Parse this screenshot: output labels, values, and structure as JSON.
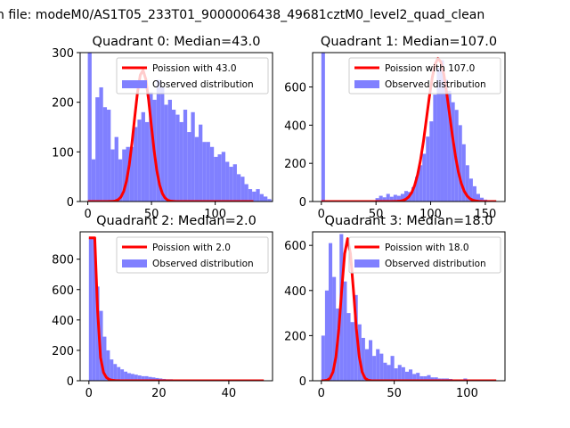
{
  "figure_title": "n file: modeM0/AS1T05_233T01_9000006438_49681cztM0_level2_quad_clean",
  "colors": {
    "hist": "#8080ff",
    "poisson": "#ff0000",
    "axis": "#000000"
  },
  "chart_data": [
    {
      "type": "bar",
      "title": "Quadrant 0: Median=43.0",
      "xlim": [
        -6,
        145
      ],
      "ylim": [
        0,
        300
      ],
      "xticks": [
        0,
        50,
        100
      ],
      "yticks": [
        0,
        100,
        200,
        300
      ],
      "legend_position": "upper right",
      "legend": [
        "Poission with 43.0",
        "Observed distribution"
      ],
      "bin_width": 3,
      "bins_start": 0,
      "observed": [
        300,
        85,
        210,
        230,
        190,
        185,
        105,
        130,
        85,
        105,
        110,
        110,
        150,
        165,
        180,
        160,
        220,
        205,
        245,
        230,
        195,
        205,
        185,
        175,
        160,
        185,
        140,
        180,
        130,
        155,
        120,
        120,
        110,
        90,
        95,
        100,
        80,
        70,
        75,
        55,
        50,
        35,
        25,
        20,
        25,
        15,
        10,
        5,
        2
      ],
      "poisson_lambda": 43.0,
      "poisson_peak": 265,
      "poisson_xrange": [
        0,
        130
      ]
    },
    {
      "type": "bar",
      "title": "Quadrant 1: Median=107.0",
      "xlim": [
        -8,
        168
      ],
      "ylim": [
        0,
        780
      ],
      "xticks": [
        0,
        50,
        100,
        150
      ],
      "yticks": [
        0,
        200,
        400,
        600
      ],
      "legend_position": "upper right",
      "legend": [
        "Poission with 107.0",
        "Observed distribution"
      ],
      "bin_width": 3.3,
      "bins_start": 0,
      "observed": [
        780,
        0,
        0,
        0,
        0,
        0,
        0,
        0,
        0,
        0,
        0,
        0,
        0,
        0,
        0,
        18,
        30,
        22,
        40,
        25,
        35,
        30,
        40,
        55,
        50,
        75,
        130,
        190,
        250,
        340,
        420,
        560,
        700,
        740,
        640,
        580,
        520,
        480,
        400,
        300,
        190,
        120,
        80,
        40,
        20,
        10,
        5,
        3
      ],
      "poisson_lambda": 107.0,
      "poisson_peak": 750,
      "poisson_xrange": [
        0,
        160
      ]
    },
    {
      "type": "bar",
      "title": "Quadrant 2: Median=2.0",
      "xlim": [
        -2.5,
        52.5
      ],
      "ylim": [
        0,
        980
      ],
      "xticks": [
        0,
        20,
        40
      ],
      "yticks": [
        0,
        200,
        400,
        600,
        800
      ],
      "legend_position": "upper right",
      "legend": [
        "Poission with 2.0",
        "Observed distribution"
      ],
      "bin_width": 1.0,
      "bins_start": 0,
      "observed": [
        940,
        940,
        620,
        460,
        290,
        200,
        140,
        110,
        90,
        75,
        60,
        50,
        45,
        40,
        35,
        30,
        30,
        25,
        22,
        18,
        15,
        12,
        10,
        10,
        8,
        6,
        5,
        5,
        4,
        3,
        3,
        2,
        2,
        2,
        1,
        1,
        1,
        1,
        1,
        1,
        0,
        0,
        0,
        0,
        0,
        0,
        0,
        0,
        0,
        0
      ],
      "poisson_lambda": 2.0,
      "poisson_peak": 940,
      "poisson_xrange": [
        0,
        50
      ]
    },
    {
      "type": "bar",
      "title": "Quadrant 3: Median=18.0",
      "xlim": [
        -6,
        126
      ],
      "ylim": [
        0,
        660
      ],
      "xticks": [
        0,
        50,
        100
      ],
      "yticks": [
        0,
        200,
        400,
        600
      ],
      "legend_position": "upper right",
      "legend": [
        "Poission with 18.0",
        "Observed distribution"
      ],
      "bin_width": 2.5,
      "bins_start": 0,
      "observed": [
        200,
        400,
        610,
        460,
        320,
        650,
        440,
        300,
        260,
        380,
        250,
        190,
        140,
        180,
        110,
        140,
        120,
        80,
        70,
        110,
        55,
        70,
        60,
        40,
        50,
        30,
        35,
        20,
        20,
        25,
        15,
        15,
        10,
        10,
        10,
        8,
        5,
        5,
        5,
        10,
        5,
        5,
        0,
        0,
        0,
        0,
        0,
        0
      ],
      "poisson_lambda": 18.0,
      "poisson_peak": 630,
      "poisson_xrange": [
        0,
        120
      ]
    }
  ]
}
